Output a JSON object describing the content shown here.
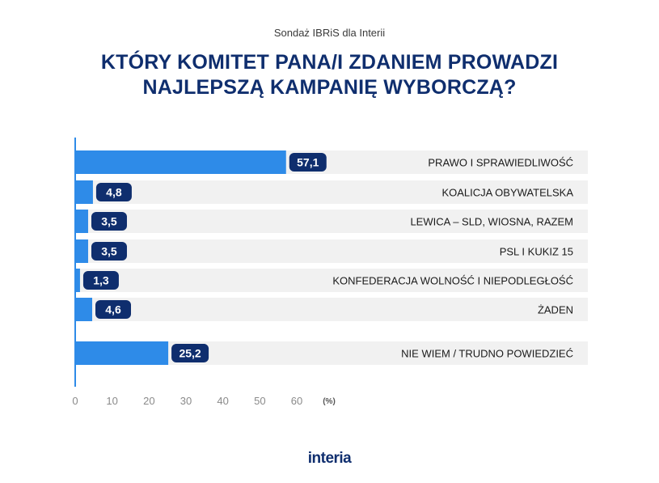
{
  "header": {
    "source": "Sondaż IBRiS dla Interii",
    "title_line1": "KTÓRY KOMITET PANA/I ZDANIEM PROWADZI",
    "title_line2": "NAJLEPSZĄ KAMPANIĘ WYBORCZĄ?"
  },
  "footer": {
    "logo": "interia"
  },
  "colors": {
    "bar": "#2e8be8",
    "badge": "#0f2e6e",
    "row_bg": "#f1f1f1",
    "axis": "#2e8be8",
    "tick_text": "#8a8a8a"
  },
  "chart_data": {
    "type": "bar",
    "orientation": "horizontal",
    "categories": [
      "PRAWO I SPRAWIEDLIWOŚĆ",
      "KOALICJA OBYWATELSKA",
      "LEWICA – SLD, WIOSNA, RAZEM",
      "PSL I KUKIZ 15",
      "KONFEDERACJA WOLNOŚĆ I NIEPODLEGŁOŚĆ",
      "ŻADEN",
      "NIE WIEM / TRUDNO POWIEDZIEĆ"
    ],
    "values": [
      57.1,
      4.8,
      3.5,
      3.5,
      1.3,
      4.6,
      25.2
    ],
    "value_labels": [
      "57,1",
      "4,8",
      "3,5",
      "3,5",
      "1,3",
      "4,6",
      "25,2"
    ],
    "xlim": [
      0,
      60
    ],
    "xticks": [
      0,
      10,
      20,
      30,
      40,
      50,
      60
    ],
    "xtick_labels": [
      "0",
      "10",
      "20",
      "30",
      "40",
      "50",
      "60"
    ],
    "unit_label": "(%)"
  }
}
